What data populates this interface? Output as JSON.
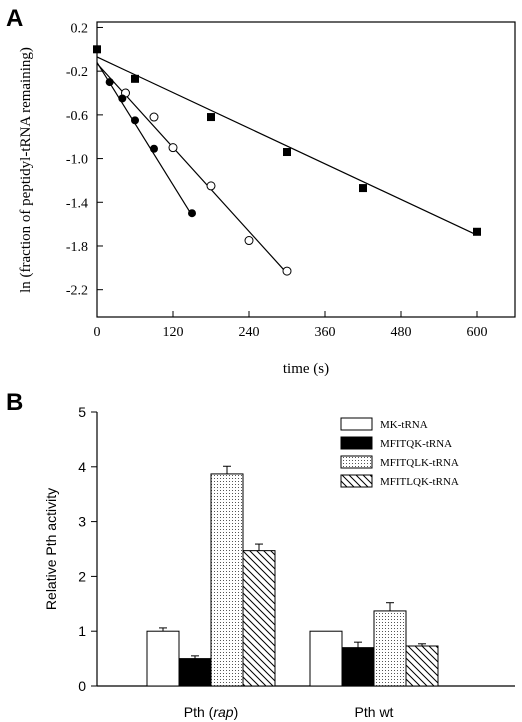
{
  "chart_data": [
    {
      "panel_label": "A",
      "type": "scatter",
      "xlabel": "time (s)",
      "ylabel": "ln (fraction of peptidyl-tRNA remaining)",
      "xlim": [
        0,
        660
      ],
      "ylim": [
        -2.45,
        0.25
      ],
      "xticks": [
        0,
        120,
        240,
        360,
        480,
        600
      ],
      "yticks": [
        0.2,
        -0.2,
        -0.6,
        -1.0,
        -1.4,
        -1.8,
        -2.2
      ],
      "ytick_labels": [
        "0.2",
        "-0.2",
        "-0.6",
        "-1.0",
        "-1.4",
        "-1.8",
        "-2.2"
      ],
      "grid": false,
      "legend": "none",
      "series": [
        {
          "marker": "filled-square",
          "x": [
            0,
            60,
            180,
            300,
            420,
            600
          ],
          "y": [
            0.0,
            -0.27,
            -0.62,
            -0.94,
            -1.27,
            -1.67
          ],
          "fit": {
            "x": [
              0,
              600
            ],
            "y": [
              -0.07,
              -1.7
            ]
          }
        },
        {
          "marker": "open-circle",
          "x": [
            45,
            90,
            120,
            180,
            240,
            300
          ],
          "y": [
            -0.4,
            -0.62,
            -0.9,
            -1.25,
            -1.75,
            -2.03
          ],
          "fit": {
            "x": [
              0,
              300
            ],
            "y": [
              -0.13,
              -2.05
            ]
          }
        },
        {
          "marker": "filled-circle",
          "x": [
            20,
            40,
            60,
            90,
            150
          ],
          "y": [
            -0.3,
            -0.45,
            -0.65,
            -0.91,
            -1.5
          ],
          "fit": {
            "x": [
              0,
              150
            ],
            "y": [
              -0.12,
              -1.52
            ]
          }
        }
      ]
    },
    {
      "panel_label": "B",
      "type": "bar",
      "ylabel": "Relative Pth activity",
      "ylim": [
        0,
        5
      ],
      "yticks": [
        0,
        1,
        2,
        3,
        4,
        5
      ],
      "categories": [
        {
          "text": "Pth ",
          "italic": "rap",
          "open": "(",
          "close": ")"
        },
        {
          "text": "Pth wt"
        }
      ],
      "legend": "top-right",
      "series": [
        {
          "name": "MK-tRNA",
          "fill": "white",
          "values": [
            1.0,
            1.0
          ],
          "errors": [
            0.06,
            0.0
          ]
        },
        {
          "name": "MFITQK-tRNA",
          "fill": "black",
          "values": [
            0.5,
            0.7
          ],
          "errors": [
            0.05,
            0.1
          ]
        },
        {
          "name": "MFITQLK-tRNA",
          "fill": "dotted",
          "values": [
            3.87,
            1.37
          ],
          "errors": [
            0.14,
            0.15
          ]
        },
        {
          "name": "MFITLQK-tRNA",
          "fill": "hatched",
          "values": [
            2.47,
            0.73
          ],
          "errors": [
            0.12,
            0.04
          ]
        }
      ]
    }
  ]
}
